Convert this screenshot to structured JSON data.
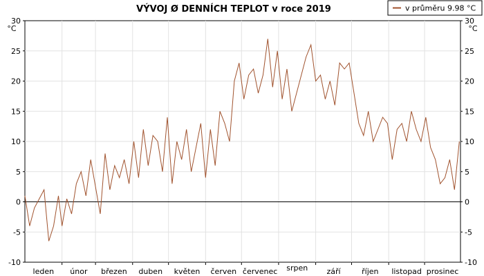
{
  "chart_data": {
    "type": "line",
    "title": "VÝVOJ Ø DENNÍCH TEPLOT v roce 2019",
    "ylabel": "°C",
    "ylim": [
      -10,
      30
    ],
    "yticks": [
      -10,
      -5,
      0,
      5,
      10,
      15,
      20,
      25,
      30
    ],
    "y_unit_label": "°C",
    "categories": [
      "leden",
      "únor",
      "březen",
      "duben",
      "květen",
      "červen",
      "červenec",
      "srpen",
      "září",
      "říjen",
      "listopad",
      "prosinec"
    ],
    "grid": true,
    "legend_position": "top-right",
    "series": [
      {
        "name": "v průměru 9.98 °C",
        "color": "#a0522d",
        "x": [
          1,
          5,
          9,
          13,
          17,
          21,
          25,
          29,
          32,
          36,
          40,
          44,
          48,
          52,
          56,
          60,
          64,
          68,
          72,
          76,
          80,
          84,
          88,
          92,
          96,
          100,
          104,
          108,
          112,
          116,
          120,
          124,
          128,
          132,
          136,
          140,
          144,
          148,
          152,
          156,
          160,
          164,
          168,
          172,
          176,
          180,
          184,
          188,
          192,
          196,
          200,
          204,
          208,
          212,
          216,
          220,
          224,
          228,
          232,
          236,
          240,
          244,
          248,
          252,
          256,
          260,
          264,
          268,
          272,
          276,
          280,
          284,
          288,
          292,
          296,
          300,
          304,
          308,
          312,
          316,
          320,
          324,
          328,
          332,
          336,
          340,
          344,
          348,
          352,
          356,
          360,
          364
        ],
        "values": [
          1,
          -4,
          -1,
          0.5,
          2,
          -6.5,
          -4,
          1,
          -4,
          0.5,
          -2,
          3,
          5,
          1,
          7,
          2.5,
          -2,
          8,
          2,
          6,
          4,
          7,
          3,
          10,
          4,
          12,
          6,
          11,
          10,
          5,
          14,
          3,
          10,
          7,
          12,
          5,
          9,
          13,
          4,
          12,
          6,
          15,
          13,
          10,
          20,
          23,
          17,
          21,
          22,
          18,
          21,
          27,
          19,
          25,
          17,
          22,
          15,
          18,
          21,
          24,
          26,
          20,
          21,
          17,
          20,
          16,
          23,
          22,
          23,
          18,
          13,
          11,
          15,
          10,
          12,
          14,
          13,
          7,
          12,
          13,
          10,
          15,
          12,
          10,
          14,
          9,
          7,
          3,
          4,
          7,
          2,
          10
        ]
      }
    ]
  }
}
